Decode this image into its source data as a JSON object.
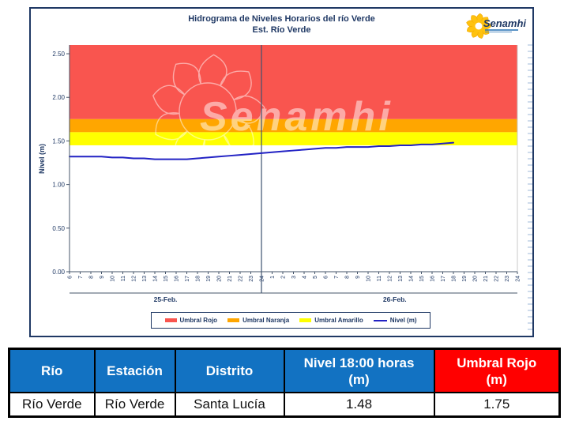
{
  "chart_panel": {
    "title_line1": "Hidrograma de Niveles Horarios del río Verde",
    "title_line2": "Est. Río Verde",
    "logo_text": "Senamhi",
    "watermark_text": "Senamhi",
    "panel_border_color": "#1F3864"
  },
  "chart_data": {
    "type": "line",
    "title": "Hidrograma de Niveles Horarios del río Verde — Est. Río Verde",
    "xlabel": "",
    "ylabel": "Nivel (m)",
    "ylim": [
      0,
      2.6
    ],
    "y_ticks": [
      0.0,
      0.5,
      1.0,
      1.5,
      2.0,
      2.5
    ],
    "grid": false,
    "legend_position": "bottom",
    "x_groups": [
      {
        "label": "25-Feb.",
        "hours": [
          6,
          7,
          8,
          9,
          10,
          11,
          12,
          13,
          14,
          15,
          16,
          17,
          18,
          19,
          20,
          21,
          22,
          23,
          24
        ]
      },
      {
        "label": "26-Feb.",
        "hours": [
          1,
          2,
          3,
          4,
          5,
          6,
          7,
          8,
          9,
          10,
          11,
          12,
          13,
          14,
          15,
          16,
          17,
          18,
          19,
          20,
          21,
          22,
          23,
          24
        ]
      }
    ],
    "day_separator_index": 18,
    "bands": [
      {
        "name": "Umbral Rojo",
        "from": 1.75,
        "to": 2.6,
        "color": "#F9554F"
      },
      {
        "name": "Umbral Naranja",
        "from": 1.6,
        "to": 1.75,
        "color": "#FFA600"
      },
      {
        "name": "Umbral Amarillo",
        "from": 1.45,
        "to": 1.6,
        "color": "#FFFF00"
      }
    ],
    "series": [
      {
        "name": "Nivel (m)",
        "color": "#2222C4",
        "values": [
          1.32,
          1.32,
          1.32,
          1.32,
          1.31,
          1.31,
          1.3,
          1.3,
          1.29,
          1.29,
          1.29,
          1.29,
          1.3,
          1.31,
          1.32,
          1.33,
          1.34,
          1.35,
          1.36,
          1.37,
          1.38,
          1.39,
          1.4,
          1.41,
          1.42,
          1.42,
          1.43,
          1.43,
          1.43,
          1.44,
          1.44,
          1.45,
          1.45,
          1.46,
          1.46,
          1.47,
          1.48
        ]
      }
    ]
  },
  "legend_items": [
    {
      "label": "Umbral Rojo",
      "color": "#F9554F"
    },
    {
      "label": "Umbral Naranja",
      "color": "#FFA600"
    },
    {
      "label": "Umbral Amarillo",
      "color": "#FFFF00"
    },
    {
      "label": "Nivel (m)",
      "color": "#2222C4"
    }
  ],
  "table": {
    "header_blue": "#1272C2",
    "header_red": "#FF0000",
    "headers": [
      {
        "line1": "Río",
        "line2": ""
      },
      {
        "line1": "Estación",
        "line2": ""
      },
      {
        "line1": "Distrito",
        "line2": ""
      },
      {
        "line1": "Nivel 18:00 horas",
        "line2": "(m)"
      },
      {
        "line1": "Umbral Rojo",
        "line2": "(m)"
      }
    ],
    "row": [
      "Río Verde",
      "Río Verde",
      "Santa Lucía",
      "1.48",
      "1.75"
    ]
  }
}
